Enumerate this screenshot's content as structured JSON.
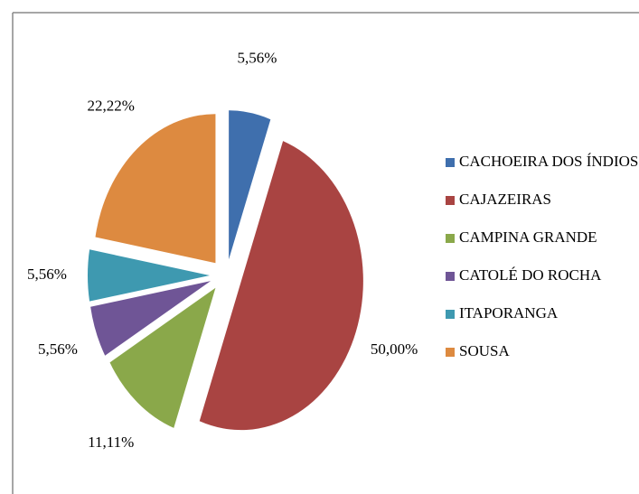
{
  "chart_data": {
    "type": "pie",
    "categories": [
      "CACHOEIRA DOS ÍNDIOS",
      "CAJAZEIRAS",
      "CAMPINA GRANDE",
      "CATOLÉ DO ROCHA",
      "ITAPORANGA",
      "SOUSA"
    ],
    "values": [
      5.56,
      50,
      11.11,
      5.56,
      5.56,
      22.22
    ],
    "value_labels": [
      "5,56%",
      "50,00%",
      "11,11%",
      "5,56%",
      "5,56%",
      "22,22%"
    ],
    "colors": [
      "#3f6fad",
      "#a94442",
      "#8aa84a",
      "#6f5596",
      "#3e99b0",
      "#dd8a40"
    ],
    "legend": "right"
  }
}
